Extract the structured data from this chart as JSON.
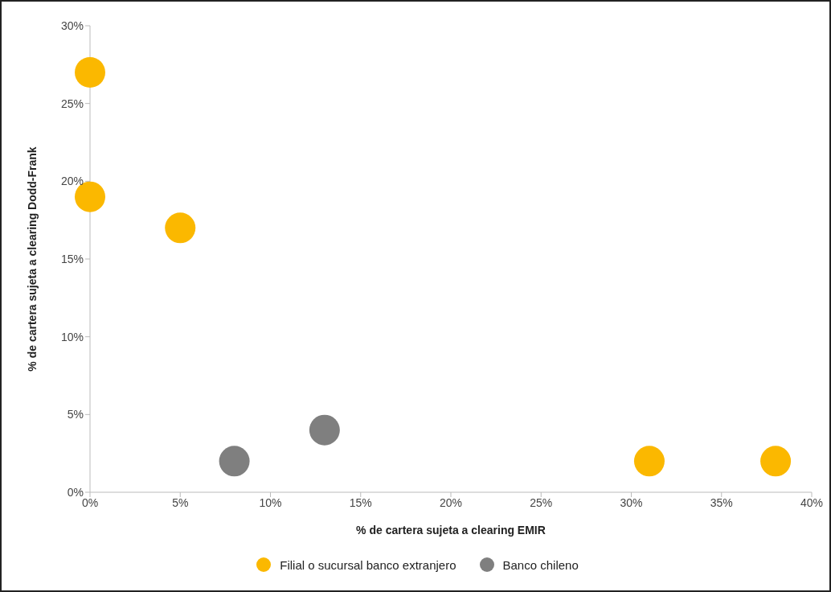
{
  "chart_data": {
    "type": "scatter",
    "xlabel": "% de cartera sujeta a clearing EMIR",
    "ylabel": "% de cartera sujeta a clearing Dodd-Frank",
    "series": [
      {
        "name": "Filial o sucursal banco extranjero",
        "color": "#fbb800",
        "x": [
          0,
          0,
          5,
          31,
          38
        ],
        "values": [
          27,
          19,
          17,
          2,
          2
        ]
      },
      {
        "name": "Banco chileno",
        "color": "#7f7f7f",
        "x": [
          8,
          13
        ],
        "values": [
          2,
          4
        ]
      }
    ],
    "xlim": [
      0,
      40
    ],
    "xticks": [
      {
        "value": 0,
        "label": "0%"
      },
      {
        "value": 5,
        "label": "5%"
      },
      {
        "value": 10,
        "label": "10%"
      },
      {
        "value": 15,
        "label": "15%"
      },
      {
        "value": 20,
        "label": "20%"
      },
      {
        "value": 25,
        "label": "25%"
      },
      {
        "value": 30,
        "label": "30%"
      },
      {
        "value": 35,
        "label": "35%"
      },
      {
        "value": 40,
        "label": "40%"
      }
    ],
    "ylim": [
      0,
      30
    ],
    "yticks": [
      {
        "value": 0,
        "label": "0%"
      },
      {
        "value": 5,
        "label": "5%"
      },
      {
        "value": 10,
        "label": "10%"
      },
      {
        "value": 15,
        "label": "15%"
      },
      {
        "value": 20,
        "label": "20%"
      },
      {
        "value": 25,
        "label": "25%"
      },
      {
        "value": 30,
        "label": "30%"
      }
    ],
    "grid": false,
    "legend": "bottom",
    "marker": "circle"
  }
}
